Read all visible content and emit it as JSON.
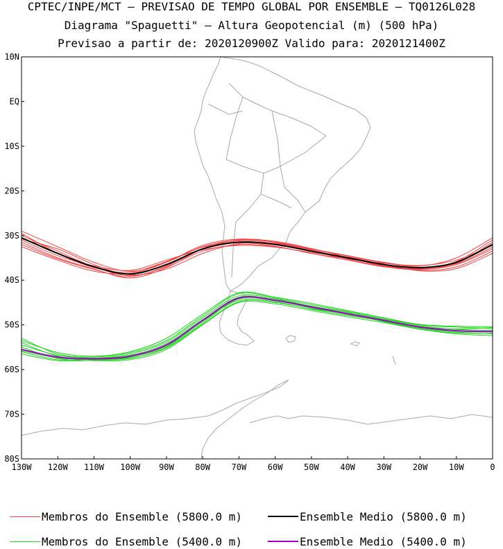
{
  "header": {
    "line1": "CPTEC/INPE/MCT — PREVISAO DE TEMPO GLOBAL POR ENSEMBLE — TQ0126L028",
    "line2": "Diagrama \"Spaguetti\" — Altura Geopotencial (m) (500 hPa)",
    "line3": "Previsao a partir de: 2020120900Z  Valido para: 2020121400Z"
  },
  "map": {
    "region": "South America and adjacent oceans",
    "x_ticks": [
      {
        "lon": -130,
        "label": "130W"
      },
      {
        "lon": -120,
        "label": "120W"
      },
      {
        "lon": -110,
        "label": "110W"
      },
      {
        "lon": -100,
        "label": "100W"
      },
      {
        "lon": -90,
        "label": "90W"
      },
      {
        "lon": -80,
        "label": "80W"
      },
      {
        "lon": -70,
        "label": "70W"
      },
      {
        "lon": -60,
        "label": "60W"
      },
      {
        "lon": -50,
        "label": "50W"
      },
      {
        "lon": -40,
        "label": "40W"
      },
      {
        "lon": -30,
        "label": "30W"
      },
      {
        "lon": -20,
        "label": "20W"
      },
      {
        "lon": -10,
        "label": "10W"
      },
      {
        "lon": 0,
        "label": "0"
      }
    ],
    "y_ticks": [
      {
        "lat": 10,
        "label": "10N"
      },
      {
        "lat": 0,
        "label": "EQ"
      },
      {
        "lat": -10,
        "label": "10S"
      },
      {
        "lat": -20,
        "label": "20S"
      },
      {
        "lat": -30,
        "label": "30S"
      },
      {
        "lat": -40,
        "label": "40S"
      },
      {
        "lat": -50,
        "label": "50S"
      },
      {
        "lat": -60,
        "label": "60S"
      },
      {
        "lat": -70,
        "label": "70S"
      },
      {
        "lat": -80,
        "label": "80S"
      }
    ],
    "colors": {
      "coast": "#a8a8a8",
      "member_5800": "#f04040",
      "mean_5800": "#000000",
      "member_5400": "#1ed21e",
      "mean_5400": "#a000c8",
      "frame": "#000000"
    },
    "contours": {
      "c5800": {
        "mean": [
          [
            -130,
            -30.5
          ],
          [
            -120,
            -34
          ],
          [
            -110,
            -37
          ],
          [
            -100,
            -38.6
          ],
          [
            -90,
            -36.5
          ],
          [
            -80,
            -33
          ],
          [
            -70,
            -31.5
          ],
          [
            -60,
            -32
          ],
          [
            -50,
            -33.5
          ],
          [
            -40,
            -35
          ],
          [
            -30,
            -36.5
          ],
          [
            -20,
            -37.2
          ],
          [
            -10,
            -36
          ],
          [
            0,
            -32
          ]
        ],
        "members": [
          [
            [
              -130,
              -29
            ],
            [
              -120,
              -32.5
            ],
            [
              -110,
              -36
            ],
            [
              -100,
              -38
            ],
            [
              -90,
              -36
            ],
            [
              -80,
              -32.5
            ],
            [
              -70,
              -31
            ],
            [
              -60,
              -31.5
            ],
            [
              -50,
              -33
            ],
            [
              -40,
              -34.5
            ],
            [
              -30,
              -36
            ],
            [
              -20,
              -36.8
            ],
            [
              -10,
              -35
            ],
            [
              0,
              -30.5
            ]
          ],
          [
            [
              -130,
              -30
            ],
            [
              -120,
              -33.5
            ],
            [
              -110,
              -37
            ],
            [
              -100,
              -39
            ],
            [
              -90,
              -37
            ],
            [
              -80,
              -33.5
            ],
            [
              -70,
              -32
            ],
            [
              -60,
              -32.5
            ],
            [
              -50,
              -34
            ],
            [
              -40,
              -35.5
            ],
            [
              -30,
              -37
            ],
            [
              -20,
              -37.6
            ],
            [
              -10,
              -36.5
            ],
            [
              0,
              -33
            ]
          ],
          [
            [
              -130,
              -31.5
            ],
            [
              -120,
              -35
            ],
            [
              -110,
              -37.5
            ],
            [
              -100,
              -39.5
            ],
            [
              -90,
              -37.2
            ],
            [
              -80,
              -33
            ],
            [
              -70,
              -31.2
            ],
            [
              -60,
              -31.8
            ],
            [
              -50,
              -33.3
            ],
            [
              -40,
              -35
            ],
            [
              -30,
              -36.6
            ],
            [
              -20,
              -37.8
            ],
            [
              -10,
              -37
            ],
            [
              0,
              -33.5
            ]
          ],
          [
            [
              -130,
              -32.5
            ],
            [
              -120,
              -35.5
            ],
            [
              -110,
              -38
            ],
            [
              -100,
              -38.5
            ],
            [
              -90,
              -36
            ],
            [
              -80,
              -32.2
            ],
            [
              -70,
              -30.8
            ],
            [
              -60,
              -31.5
            ],
            [
              -50,
              -33.5
            ],
            [
              -40,
              -35.3
            ],
            [
              -30,
              -36.9
            ],
            [
              -20,
              -37.5
            ],
            [
              -10,
              -36.2
            ],
            [
              0,
              -31.5
            ]
          ],
          [
            [
              -130,
              -29.5
            ],
            [
              -120,
              -34
            ],
            [
              -110,
              -37.2
            ],
            [
              -100,
              -38.2
            ],
            [
              -90,
              -35.8
            ],
            [
              -80,
              -32.6
            ],
            [
              -70,
              -31.6
            ],
            [
              -60,
              -32.4
            ],
            [
              -50,
              -34
            ],
            [
              -40,
              -35.2
            ],
            [
              -30,
              -36.2
            ],
            [
              -20,
              -36.7
            ],
            [
              -10,
              -35.5
            ],
            [
              0,
              -32.2
            ]
          ],
          [
            [
              -130,
              -31
            ],
            [
              -120,
              -34.5
            ],
            [
              -110,
              -36.8
            ],
            [
              -100,
              -37.8
            ],
            [
              -90,
              -35.5
            ],
            [
              -80,
              -33.2
            ],
            [
              -70,
              -32.2
            ],
            [
              -60,
              -32.6
            ],
            [
              -50,
              -33.8
            ],
            [
              -40,
              -34.8
            ],
            [
              -30,
              -36.4
            ],
            [
              -20,
              -37.9
            ],
            [
              -10,
              -37.4
            ],
            [
              0,
              -34
            ]
          ],
          [
            [
              -130,
              -30.8
            ],
            [
              -120,
              -33
            ],
            [
              -110,
              -36.5
            ],
            [
              -100,
              -38.8
            ],
            [
              -90,
              -37.5
            ],
            [
              -80,
              -34
            ],
            [
              -70,
              -31.8
            ],
            [
              -60,
              -31.7
            ],
            [
              -50,
              -33.1
            ],
            [
              -40,
              -34.6
            ],
            [
              -30,
              -36.1
            ],
            [
              -20,
              -37.1
            ],
            [
              -10,
              -36.3
            ],
            [
              0,
              -32.6
            ]
          ],
          [
            [
              -130,
              -32
            ],
            [
              -120,
              -35.2
            ],
            [
              -110,
              -37.6
            ],
            [
              -100,
              -39.2
            ],
            [
              -90,
              -36.8
            ],
            [
              -80,
              -32.9
            ],
            [
              -70,
              -30.9
            ],
            [
              -60,
              -31.3
            ],
            [
              -50,
              -32.9
            ],
            [
              -40,
              -34.9
            ],
            [
              -30,
              -36.8
            ],
            [
              -20,
              -37.4
            ],
            [
              -10,
              -35.8
            ],
            [
              0,
              -31
            ]
          ]
        ]
      },
      "c5400": {
        "mean": [
          [
            -130,
            -55.5
          ],
          [
            -120,
            -57.2
          ],
          [
            -110,
            -57.6
          ],
          [
            -100,
            -57
          ],
          [
            -90,
            -54.5
          ],
          [
            -80,
            -49
          ],
          [
            -70,
            -44
          ],
          [
            -60,
            -44.5
          ],
          [
            -50,
            -46
          ],
          [
            -40,
            -47.5
          ],
          [
            -30,
            -49
          ],
          [
            -20,
            -50.5
          ],
          [
            -10,
            -51.3
          ],
          [
            0,
            -51.5
          ]
        ],
        "members": [
          [
            [
              -130,
              -53
            ],
            [
              -120,
              -56.5
            ],
            [
              -110,
              -57.2
            ],
            [
              -100,
              -56.2
            ],
            [
              -90,
              -53.5
            ],
            [
              -80,
              -48
            ],
            [
              -70,
              -43
            ],
            [
              -60,
              -44
            ],
            [
              -50,
              -45.5
            ],
            [
              -40,
              -47
            ],
            [
              -30,
              -48.6
            ],
            [
              -20,
              -50
            ],
            [
              -10,
              -50.5
            ],
            [
              0,
              -50.8
            ]
          ],
          [
            [
              -130,
              -54
            ],
            [
              -120,
              -57
            ],
            [
              -110,
              -57.8
            ],
            [
              -100,
              -57.5
            ],
            [
              -90,
              -55
            ],
            [
              -80,
              -49.5
            ],
            [
              -70,
              -44.2
            ],
            [
              -60,
              -44.6
            ],
            [
              -50,
              -46.2
            ],
            [
              -40,
              -47.7
            ],
            [
              -30,
              -49.2
            ],
            [
              -20,
              -50.7
            ],
            [
              -10,
              -51.6
            ],
            [
              0,
              -52
            ]
          ],
          [
            [
              -130,
              -55
            ],
            [
              -120,
              -57.5
            ],
            [
              -110,
              -58
            ],
            [
              -100,
              -57.8
            ],
            [
              -90,
              -55.5
            ],
            [
              -80,
              -50
            ],
            [
              -70,
              -45
            ],
            [
              -60,
              -45.3
            ],
            [
              -50,
              -46.8
            ],
            [
              -40,
              -48.2
            ],
            [
              -30,
              -49.5
            ],
            [
              -20,
              -51
            ],
            [
              -10,
              -52
            ],
            [
              0,
              -52.4
            ]
          ],
          [
            [
              -130,
              -56
            ],
            [
              -120,
              -57.8
            ],
            [
              -110,
              -57.5
            ],
            [
              -100,
              -56.5
            ],
            [
              -90,
              -53.8
            ],
            [
              -80,
              -48.4
            ],
            [
              -70,
              -43.5
            ],
            [
              -60,
              -44.2
            ],
            [
              -50,
              -45.8
            ],
            [
              -40,
              -47.2
            ],
            [
              -30,
              -48.8
            ],
            [
              -20,
              -50.2
            ],
            [
              -10,
              -51
            ],
            [
              0,
              -51.2
            ]
          ],
          [
            [
              -130,
              -56.5
            ],
            [
              -120,
              -58
            ],
            [
              -110,
              -57.9
            ],
            [
              -100,
              -57.2
            ],
            [
              -90,
              -54.8
            ],
            [
              -80,
              -49.2
            ],
            [
              -70,
              -44.5
            ],
            [
              -60,
              -44.8
            ],
            [
              -50,
              -46.5
            ],
            [
              -40,
              -47.9
            ],
            [
              -30,
              -49.1
            ],
            [
              -20,
              -50.6
            ],
            [
              -10,
              -51.4
            ],
            [
              0,
              -51.6
            ]
          ],
          [
            [
              -130,
              -54.5
            ],
            [
              -120,
              -56.8
            ],
            [
              -110,
              -57.4
            ],
            [
              -100,
              -56.8
            ],
            [
              -90,
              -54.2
            ],
            [
              -80,
              -48.8
            ],
            [
              -70,
              -43.8
            ],
            [
              -60,
              -44.4
            ],
            [
              -50,
              -45.9
            ],
            [
              -40,
              -47.4
            ],
            [
              -30,
              -49
            ],
            [
              -20,
              -50.4
            ],
            [
              -10,
              -50.9
            ],
            [
              0,
              -50.6
            ]
          ],
          [
            [
              -130,
              -55.8
            ],
            [
              -120,
              -57.4
            ],
            [
              -110,
              -57.7
            ],
            [
              -100,
              -57.4
            ],
            [
              -90,
              -55.2
            ],
            [
              -80,
              -49.8
            ],
            [
              -70,
              -44.8
            ],
            [
              -60,
              -45
            ],
            [
              -50,
              -46.4
            ],
            [
              -40,
              -47.6
            ],
            [
              -30,
              -49.3
            ],
            [
              -20,
              -50.9
            ],
            [
              -10,
              -51.8
            ],
            [
              0,
              -51.9
            ]
          ],
          [
            [
              -130,
              -53.5
            ],
            [
              -120,
              -56.2
            ],
            [
              -110,
              -57
            ],
            [
              -100,
              -56
            ],
            [
              -90,
              -53
            ],
            [
              -80,
              -47.6
            ],
            [
              -70,
              -42.8
            ],
            [
              -60,
              -43.8
            ],
            [
              -50,
              -45.2
            ],
            [
              -40,
              -46.8
            ],
            [
              -30,
              -48.4
            ],
            [
              -20,
              -49.9
            ],
            [
              -10,
              -50.3
            ],
            [
              0,
              -50.4
            ]
          ]
        ]
      }
    }
  },
  "legend": [
    {
      "label": "Membros do Ensemble (5800.0 m)",
      "color": "#f04040",
      "weight": 1
    },
    {
      "label": "Ensemble Medio (5800.0 m)",
      "color": "#000000",
      "weight": 2
    },
    {
      "label": "Membros do Ensemble (5400.0 m)",
      "color": "#1ed21e",
      "weight": 1
    },
    {
      "label": "Ensemble Medio (5400.0 m)",
      "color": "#a000c8",
      "weight": 2
    }
  ]
}
